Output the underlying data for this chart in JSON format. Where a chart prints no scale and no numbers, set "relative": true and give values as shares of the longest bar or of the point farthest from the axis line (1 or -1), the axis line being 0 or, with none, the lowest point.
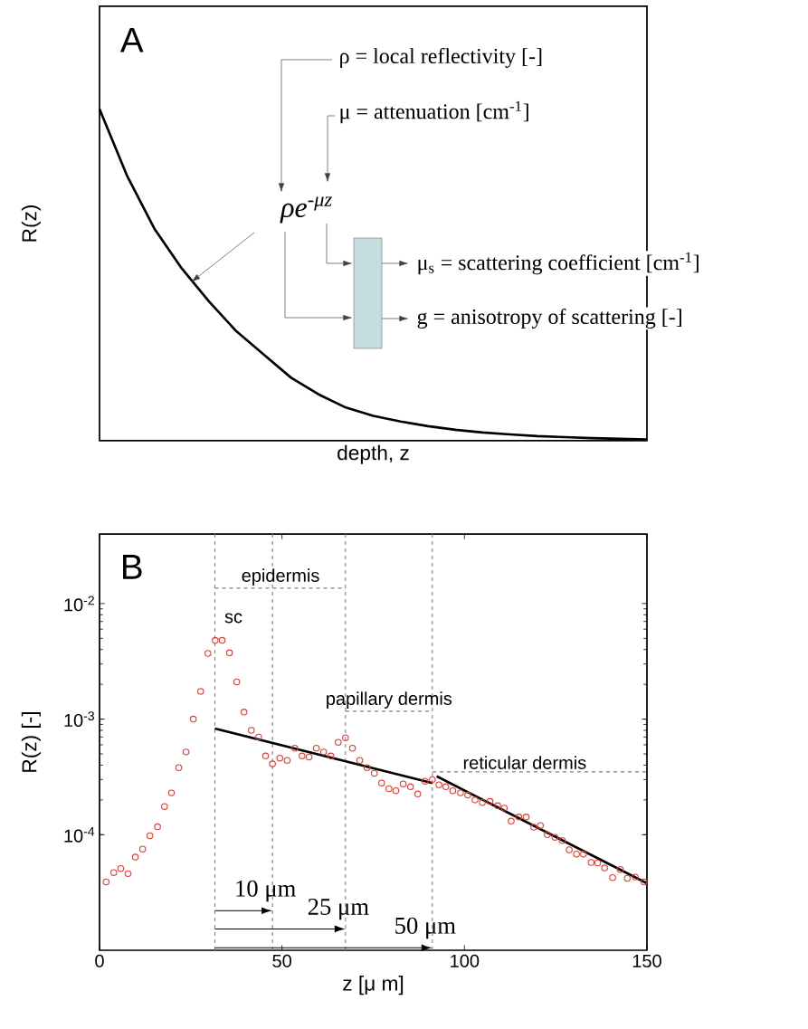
{
  "chart_data": [
    {
      "type": "line",
      "relative": true,
      "title": "A",
      "xlabel": "depth, z",
      "ylabel": "R(z)",
      "categories": [
        null,
        null,
        null,
        null,
        null,
        null,
        null,
        null,
        null,
        null,
        null,
        null,
        null,
        null,
        null,
        null,
        null,
        null,
        null,
        null,
        null
      ],
      "values": [
        1,
        0.8,
        0.64,
        0.52,
        0.42,
        0.33,
        0.26,
        0.19,
        0.14,
        0.1,
        0.075,
        0.058,
        0.044,
        0.033,
        0.025,
        0.019,
        0.014,
        0.011,
        0.008,
        0.006,
        0.004
      ],
      "color": "#000000",
      "annotations": [
        "ρ = local reflectivity [-]",
        "μ = attenuation [cm$^{-1}$]",
        "ρe$^{-μz}$",
        "μ$_{s}$ = scattering coefficient [cm$^{-1}$]",
        "g = anisotropy of scattering [-]"
      ]
    },
    {
      "type": "scatter",
      "title": "B",
      "xlabel": "z [μ m]",
      "ylabel": "R(z) [-]",
      "log": "y",
      "marker": "circle",
      "xlim": [
        0,
        150
      ],
      "xticks": [
        0,
        50,
        100,
        150
      ],
      "ylim": [
        1e-05,
        0.04
      ],
      "yticks": [
        {
          "value": 0.0001,
          "label": "10$^{-4}$"
        },
        {
          "value": 0.001,
          "label": "10$^{-3}$"
        },
        {
          "value": 0.01,
          "label": "10$^{-2}$"
        }
      ],
      "series": [
        {
          "type": "scatter",
          "color": "#e8392f",
          "x": [
            1.8,
            3.9,
            5.8,
            7.8,
            9.8,
            11.8,
            13.8,
            15.9,
            17.8,
            19.7,
            21.7,
            23.7,
            25.7,
            27.7,
            29.7,
            31.7,
            33.6,
            35.6,
            37.6,
            39.6,
            41.6,
            43.6,
            45.5,
            47.4,
            49.4,
            51.4,
            53.5,
            55.5,
            57.4,
            59.4,
            61.4,
            63.4,
            65.4,
            67.4,
            69.3,
            71.3,
            73.3,
            75.3,
            77.3,
            79.3,
            81.2,
            83.2,
            85.2,
            87.2,
            89.2,
            91.2,
            93.0,
            94.9,
            96.8,
            98.9,
            100.9,
            102.9,
            104.9,
            107.0,
            109.1,
            110.9,
            112.8,
            114.9,
            116.9,
            119.0,
            120.8,
            122.7,
            124.8,
            126.8,
            128.7,
            130.7,
            132.6,
            134.7,
            136.5,
            138.4,
            140.6,
            142.7,
            144.6,
            146.8,
            149.2
          ],
          "values": [
            3.9e-05,
            4.7e-05,
            5.1e-05,
            4.6e-05,
            6.4e-05,
            7.5e-05,
            9.8e-05,
            0.000117,
            0.000175,
            0.00023,
            0.00038,
            0.00052,
            0.001,
            0.00174,
            0.0037,
            0.0048,
            0.0048,
            0.00375,
            0.0021,
            0.00115,
            0.0008,
            0.0007,
            0.00048,
            0.00041,
            0.00046,
            0.00044,
            0.00056,
            0.00048,
            0.00047,
            0.00056,
            0.00052,
            0.00048,
            0.00063,
            0.00069,
            0.00056,
            0.00044,
            0.00038,
            0.00034,
            0.00028,
            0.00025,
            0.00024,
            0.000275,
            0.00026,
            0.000225,
            0.00029,
            0.0003,
            0.00027,
            0.00026,
            0.00024,
            0.00023,
            0.00022,
            0.0002,
            0.00019,
            0.000194,
            0.000178,
            0.00017,
            0.000131,
            0.000142,
            0.000142,
            0.000116,
            0.00012,
            0.0001,
            9.5e-05,
            8.9e-05,
            7.4e-05,
            6.8e-05,
            6.8e-05,
            5.75e-05,
            5.7e-05,
            5.15e-05,
            4.26e-05,
            5e-05,
            4.2e-05,
            4.3e-05,
            3.9e-05
          ]
        },
        {
          "type": "line",
          "marker": "none",
          "color": "#000000",
          "x": [
            31.6,
            91.2
          ],
          "values": [
            0.00083,
            0.00028
          ]
        },
        {
          "type": "line",
          "marker": "none",
          "color": "#000000",
          "x": [
            92.4,
            150
          ],
          "values": [
            0.00032,
            3.8e-05
          ]
        },
        {
          "type": "line",
          "marker": "none",
          "line_style": "dashed",
          "color": "#808080",
          "x": [
            31.6,
            67.4
          ],
          "values": [
            0.0136,
            0.0136
          ]
        },
        {
          "type": "line",
          "marker": "none",
          "line_style": "dashed",
          "color": "#808080",
          "x": [
            67.4,
            91.2
          ],
          "values": [
            0.00117,
            0.00117
          ]
        },
        {
          "type": "line",
          "marker": "none",
          "line_style": "dashed",
          "color": "#808080",
          "x": [
            91.2,
            150
          ],
          "values": [
            0.00035,
            0.00035
          ]
        }
      ],
      "ref_lines": [
        {
          "axis": "x",
          "value": 31.6,
          "color": "#808080",
          "line_style": "dashed"
        },
        {
          "axis": "x",
          "value": 47.4,
          "color": "#808080",
          "line_style": "dashed"
        },
        {
          "axis": "x",
          "value": 67.4,
          "color": "#808080",
          "line_style": "dashed"
        },
        {
          "axis": "x",
          "value": 91.2,
          "color": "#808080",
          "line_style": "dashed"
        }
      ],
      "annotations": [
        "sc",
        {
          "text": "epidermis",
          "x": 49.6,
          "y": 0.0136
        },
        {
          "text": "papillary dermis",
          "x": 79.3,
          "y": 0.00117
        },
        {
          "text": "reticular dermis",
          "x": 116.5,
          "y": 0.00035
        },
        {
          "text": "10 μm",
          "x": 47.4,
          "y": 2.2e-05
        },
        {
          "text": "25 μm",
          "x": 67.4,
          "y": 1.53e-05
        },
        {
          "text": "50 μm",
          "x": 91.2,
          "y": 1.05e-05
        }
      ]
    }
  ]
}
